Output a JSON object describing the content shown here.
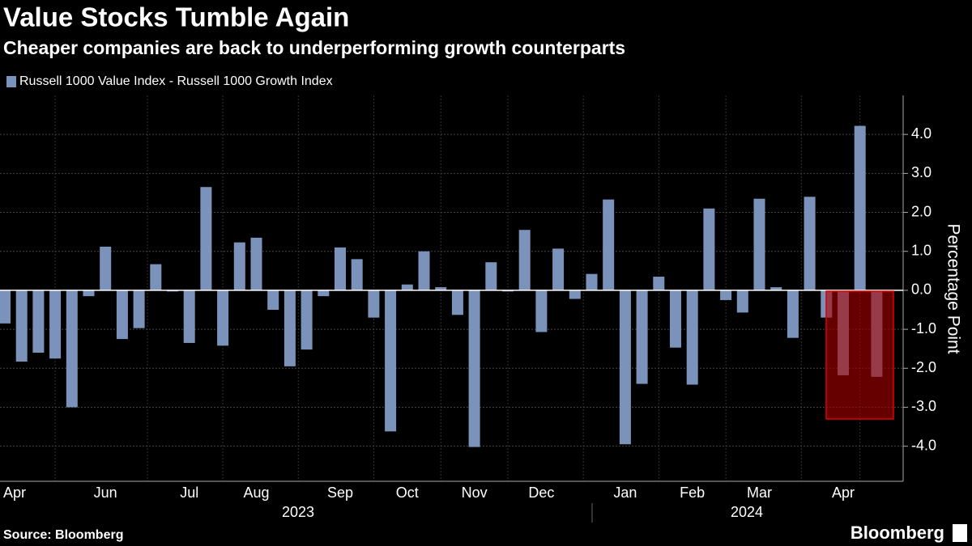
{
  "chart_data": {
    "type": "bar",
    "title": "Value Stocks Tumble Again",
    "subtitle": "Cheaper companies are back to underperforming growth counterparts",
    "y_axis_label": "Percentage Point",
    "source": "Source: Bloomberg",
    "logo": "Bloomberg",
    "year_labels": [
      "2023",
      "2024"
    ],
    "categories": [
      "Apr",
      null,
      null,
      null,
      null,
      null,
      "Jun",
      null,
      null,
      null,
      null,
      "Jul",
      null,
      null,
      null,
      "Aug",
      null,
      null,
      null,
      null,
      "Sep",
      null,
      null,
      null,
      "Oct",
      null,
      null,
      null,
      "Nov",
      null,
      null,
      null,
      "Dec",
      null,
      null,
      null,
      null,
      "Jan",
      null,
      null,
      null,
      "Feb",
      null,
      null,
      null,
      "Mar",
      null,
      null,
      null,
      null,
      "Apr",
      null,
      null
    ],
    "series": [
      {
        "name": "Russell 1000 Value Index - Russell 1000 Growth Index",
        "color": "#7b93ba",
        "values": [
          -0.85,
          -1.83,
          -1.6,
          -1.75,
          -3.0,
          -0.15,
          1.12,
          -1.25,
          -0.97,
          0.67,
          -0.03,
          -1.35,
          2.65,
          -1.42,
          1.23,
          1.35,
          -0.5,
          -1.95,
          -1.52,
          -0.15,
          1.1,
          0.8,
          -0.7,
          -3.62,
          0.15,
          1.0,
          0.08,
          -0.63,
          -4.02,
          0.72,
          -0.03,
          1.55,
          -1.07,
          1.07,
          -0.22,
          0.42,
          2.33,
          -3.95,
          -2.4,
          0.35,
          -1.47,
          -2.42,
          2.1,
          -0.25,
          -0.57,
          2.35,
          0.08,
          -1.22,
          2.4,
          -0.7,
          -2.18,
          4.22,
          -2.22
        ]
      }
    ],
    "ylim": [
      -4.9,
      5.0
    ],
    "yticks": [
      {
        "value": -4,
        "label": "-4.0"
      },
      {
        "value": -3,
        "label": "-3.0"
      },
      {
        "value": -2,
        "label": "-2.0"
      },
      {
        "value": -1,
        "label": "-1.0"
      },
      {
        "value": 0,
        "label": "0.0"
      },
      {
        "value": 1,
        "label": "1.0"
      },
      {
        "value": 2,
        "label": "2.0"
      },
      {
        "value": 3,
        "label": "3.0"
      },
      {
        "value": 4,
        "label": "4.0"
      }
    ],
    "grid": true
  }
}
